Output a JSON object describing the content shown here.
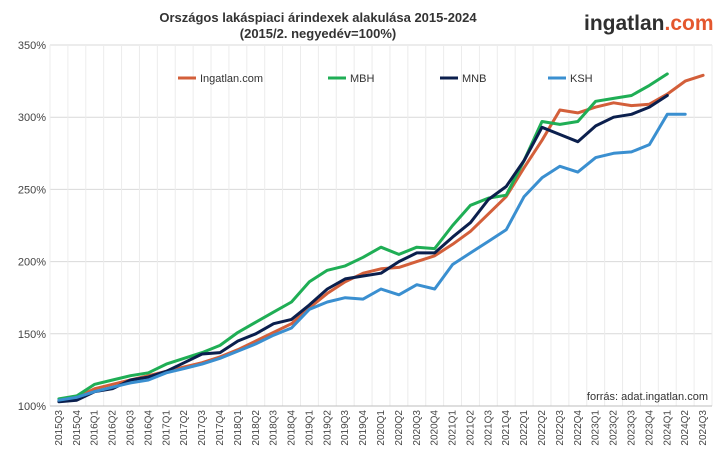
{
  "logo": {
    "name": "ingatlan",
    "suffix": ".com"
  },
  "source": "forrás: adat.ingatlan.com",
  "chart_data": {
    "type": "line",
    "title": "Országos lakáspiaci árindexek alakulása 2015-2024",
    "subtitle": "(2015/2. negyedév=100%)",
    "xlabel": "",
    "ylabel": "",
    "ylim": [
      100,
      350
    ],
    "yticks": [
      100,
      150,
      200,
      250,
      300,
      350
    ],
    "ytick_suffix": "%",
    "grid": true,
    "legend_position": "top",
    "categories": [
      "2015Q3",
      "2015Q4",
      "2016Q1",
      "2016Q2",
      "2016Q3",
      "2016Q4",
      "2017Q1",
      "2017Q2",
      "2017Q3",
      "2017Q4",
      "2018Q1",
      "2018Q2",
      "2018Q3",
      "2018Q4",
      "2019Q1",
      "2019Q2",
      "2019Q3",
      "2019Q4",
      "2020Q1",
      "2020Q2",
      "2020Q3",
      "2020Q4",
      "2021Q1",
      "2021Q2",
      "2021Q3",
      "2021Q4",
      "2022Q1",
      "2022Q2",
      "2022Q3",
      "2022Q4",
      "2023Q1",
      "2023Q2",
      "2023Q3",
      "2023Q4",
      "2024Q1",
      "2024Q2",
      "2024Q3"
    ],
    "series": [
      {
        "name": "Ingatlan.com",
        "color": "#d35f3a",
        "values": [
          104,
          106,
          112,
          115,
          118,
          121,
          124,
          127,
          130,
          134,
          139,
          145,
          151,
          157,
          168,
          178,
          186,
          192,
          195,
          196,
          200,
          204,
          212,
          221,
          233,
          245,
          265,
          284,
          305,
          303,
          307,
          310,
          308,
          309,
          316,
          325,
          329
        ]
      },
      {
        "name": "MBH",
        "color": "#1fae55",
        "values": [
          105,
          107,
          115,
          118,
          121,
          123,
          129,
          133,
          137,
          142,
          151,
          158,
          165,
          172,
          186,
          194,
          197,
          203,
          210,
          205,
          210,
          209,
          225,
          239,
          244,
          246,
          270,
          297,
          295,
          297,
          311,
          313,
          315,
          322,
          330,
          null,
          null
        ]
      },
      {
        "name": "MNB",
        "color": "#0b1f4d",
        "values": [
          103,
          104,
          110,
          112,
          118,
          120,
          124,
          130,
          136,
          137,
          145,
          150,
          157,
          160,
          170,
          181,
          188,
          190,
          192,
          200,
          206,
          206,
          217,
          227,
          243,
          252,
          270,
          293,
          288,
          283,
          294,
          300,
          302,
          307,
          315,
          null,
          null
        ]
      },
      {
        "name": "KSH",
        "color": "#3a8fd0",
        "values": [
          104,
          106,
          110,
          113,
          116,
          118,
          123,
          126,
          129,
          133,
          138,
          143,
          149,
          154,
          167,
          172,
          175,
          174,
          181,
          177,
          184,
          181,
          198,
          206,
          214,
          222,
          245,
          258,
          266,
          262,
          272,
          275,
          276,
          281,
          302,
          302,
          null
        ]
      }
    ]
  }
}
